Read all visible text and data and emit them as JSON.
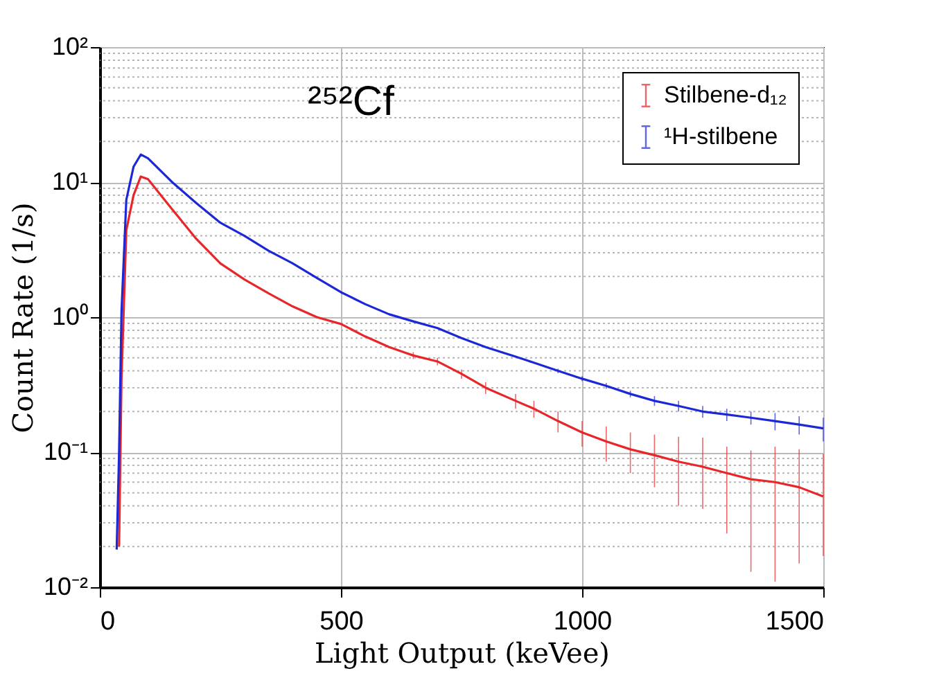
{
  "chart_data": {
    "type": "line",
    "xlabel": "Light Output (keVee)",
    "ylabel": "Count Rate (1/s)",
    "annotations": [
      "²⁵²Cf"
    ],
    "log": "y",
    "grid": true,
    "legend": "top right",
    "line_style": "solid",
    "xlim": [
      0,
      1500
    ],
    "xticks": [
      0,
      500,
      1000,
      1500
    ],
    "ylim": [
      0.01,
      100
    ],
    "yticks": [
      {
        "value": 0.01,
        "label": "10⁻²"
      },
      {
        "value": 0.1,
        "label": "10⁻¹"
      },
      {
        "value": 1,
        "label": "10⁰"
      },
      {
        "value": 10,
        "label": "10¹"
      },
      {
        "value": 100,
        "label": "10²"
      }
    ],
    "x": [
      35,
      40,
      45,
      55,
      70,
      85,
      100,
      150,
      200,
      250,
      300,
      350,
      400,
      450,
      500,
      550,
      600,
      650,
      700,
      750,
      800,
      862,
      900,
      950,
      1000,
      1050,
      1100,
      1150,
      1200,
      1250,
      1300,
      1350,
      1400,
      1450,
      1500
    ],
    "series": [
      {
        "name": "Stilbene-d₁₂",
        "color": "#e8262a",
        "values": [
          null,
          0.02,
          0.35,
          4.4,
          8,
          11,
          10.5,
          6.3,
          3.8,
          2.5,
          1.9,
          1.5,
          1.2,
          1.0,
          0.89,
          0.72,
          0.6,
          0.52,
          0.47,
          0.38,
          0.3,
          0.24,
          0.21,
          0.17,
          0.14,
          0.12,
          0.105,
          0.095,
          0.085,
          0.078,
          0.07,
          0.063,
          0.06,
          0.055,
          0.047
        ],
        "errors": [
          null,
          null,
          null,
          null,
          null,
          null,
          null,
          null,
          null,
          null,
          null,
          null,
          null,
          null,
          null,
          null,
          null,
          0.03,
          0.03,
          0.03,
          0.03,
          0.03,
          0.03,
          0.03,
          0.03,
          0.035,
          0.035,
          0.04,
          0.045,
          [
            0.038,
            0.128
          ],
          [
            0.025,
            0.11
          ],
          [
            0.013,
            0.103
          ],
          [
            0.011,
            0.11
          ],
          [
            0.015,
            0.105
          ],
          [
            0.017,
            0.097
          ]
        ]
      },
      {
        "name": "¹H-stilbene",
        "color": "#1c27d6",
        "values": [
          0.019,
          0.1,
          1.1,
          7.4,
          13,
          16,
          15,
          10,
          7,
          5,
          4,
          3.1,
          2.5,
          1.95,
          1.53,
          1.25,
          1.05,
          0.93,
          0.83,
          0.7,
          0.6,
          0.51,
          0.46,
          0.4,
          0.35,
          0.31,
          0.27,
          0.24,
          0.22,
          0.2,
          0.19,
          0.18,
          0.17,
          0.16,
          0.15
        ],
        "errors": [
          null,
          null,
          null,
          null,
          null,
          null,
          null,
          null,
          null,
          null,
          null,
          null,
          null,
          null,
          null,
          null,
          null,
          null,
          null,
          null,
          null,
          null,
          null,
          0.015,
          0.015,
          0.015,
          0.015,
          0.02,
          0.02,
          0.02,
          0.02,
          0.02,
          0.025,
          0.025,
          0.03
        ]
      }
    ]
  }
}
